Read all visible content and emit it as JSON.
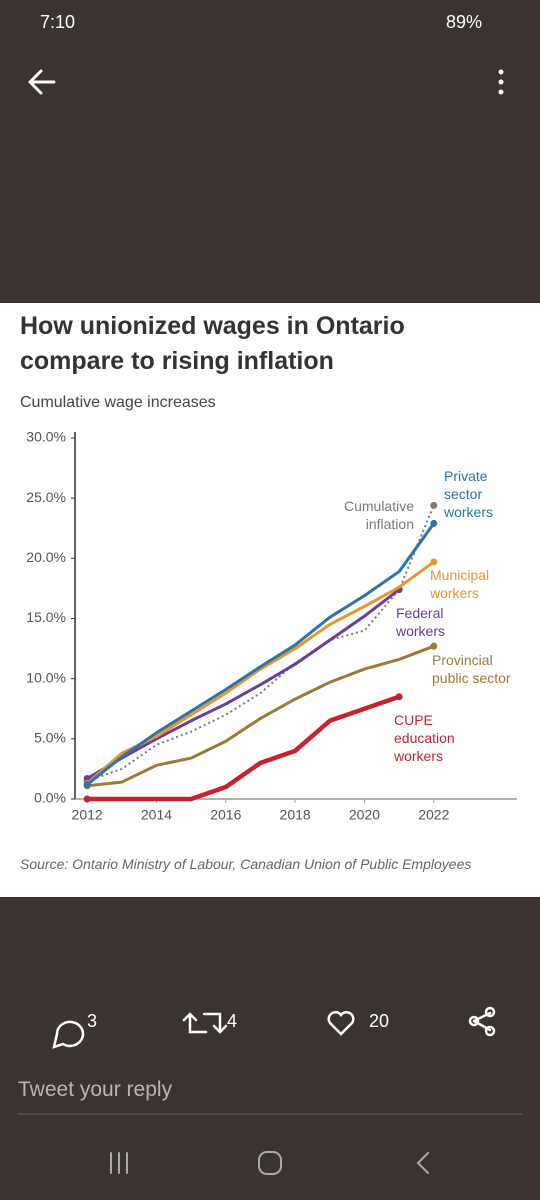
{
  "status_bar": {
    "time": "7:10",
    "battery": "89%"
  },
  "chart_data": {
    "type": "line",
    "title": "How unionized wages in Ontario compare to rising inflation",
    "subtitle": "Cumulative wage increases",
    "source": "Source: Ontario Ministry of Labour, Canadian Union of Public Employees",
    "x": [
      2012,
      2013,
      2014,
      2015,
      2016,
      2017,
      2018,
      2019,
      2020,
      2021,
      2022
    ],
    "xlim": [
      2011.65,
      2024.4
    ],
    "xticks": [
      2012,
      2014,
      2016,
      2018,
      2020,
      2022
    ],
    "ylim": [
      0,
      30
    ],
    "yticks": [
      {
        "value": 0,
        "label": "0.0%"
      },
      {
        "value": 5,
        "label": "5.0%"
      },
      {
        "value": 10,
        "label": "10.0%"
      },
      {
        "value": 15,
        "label": "15.0%"
      },
      {
        "value": 20,
        "label": "20.0%"
      },
      {
        "value": 25,
        "label": "25.0%"
      },
      {
        "value": 30,
        "label": "30.0%"
      }
    ],
    "series": [
      {
        "name": "Cumulative inflation",
        "color": "#7a7a7a",
        "dash": "dotted",
        "values": [
          1.5,
          2.5,
          4.5,
          5.6,
          7.0,
          8.8,
          11.3,
          13.2,
          14.0,
          17.4,
          24.4
        ]
      },
      {
        "name": "Provincial public sector",
        "color": "#9a7a35",
        "values": [
          1.1,
          1.4,
          2.8,
          3.4,
          4.8,
          6.7,
          8.3,
          9.7,
          10.8,
          11.6,
          12.7
        ]
      },
      {
        "name": "CUPE education workers",
        "color": "#c8232c",
        "values": [
          0,
          0,
          0,
          0,
          1.0,
          3.0,
          4.0,
          6.5,
          7.5,
          8.5,
          null
        ]
      },
      {
        "name": "Federal workers",
        "color": "#6a3d9a",
        "values": [
          1.7,
          3.4,
          5.0,
          6.5,
          7.9,
          9.5,
          11.2,
          13.2,
          15.2,
          17.4,
          null
        ]
      },
      {
        "name": "Municipal workers",
        "color": "#e8962e",
        "values": [
          1.3,
          3.8,
          5.2,
          7.0,
          8.8,
          10.8,
          12.5,
          14.5,
          16.0,
          17.6,
          19.7
        ]
      },
      {
        "name": "Private sector workers",
        "color": "#2b73a8",
        "values": [
          1.2,
          3.5,
          5.5,
          7.3,
          9.1,
          11.0,
          12.8,
          15.1,
          16.9,
          18.9,
          22.9
        ]
      }
    ]
  },
  "actions": {
    "replies": 3,
    "retweets": 4,
    "likes": 20
  },
  "reply_placeholder": "Tweet your reply"
}
